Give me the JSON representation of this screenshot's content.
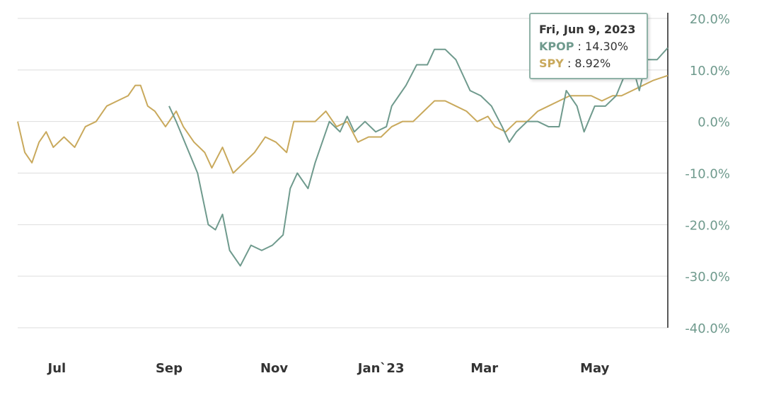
{
  "chart_data": {
    "type": "line",
    "x_unit": "days since Jun 9, 2022",
    "xlim": [
      0,
      365
    ],
    "ylim": [
      -40,
      20
    ],
    "yticks": [
      20,
      10,
      0,
      -10,
      -20,
      -30,
      -40
    ],
    "ytick_labels": [
      "20.0%",
      "10.0%",
      "0.0%",
      "-10.0%",
      "-20.0%",
      "-30.0%",
      "-40.0%"
    ],
    "xticks": [
      {
        "day": 22,
        "label": "Jul"
      },
      {
        "day": 85,
        "label": "Sep"
      },
      {
        "day": 144,
        "label": "Nov"
      },
      {
        "day": 204,
        "label": "Jan`23"
      },
      {
        "day": 262,
        "label": "Mar"
      },
      {
        "day": 324,
        "label": "May"
      }
    ],
    "grid": true,
    "series": [
      {
        "name": "SPY",
        "color": "#c9a95c",
        "points": [
          [
            0,
            0
          ],
          [
            4,
            -6
          ],
          [
            8,
            -8
          ],
          [
            12,
            -4
          ],
          [
            16,
            -2
          ],
          [
            20,
            -5
          ],
          [
            26,
            -3
          ],
          [
            32,
            -5
          ],
          [
            38,
            -1
          ],
          [
            44,
            0
          ],
          [
            50,
            3
          ],
          [
            56,
            4
          ],
          [
            62,
            5
          ],
          [
            66,
            7
          ],
          [
            69,
            7
          ],
          [
            73,
            3
          ],
          [
            77,
            2
          ],
          [
            83,
            -1
          ],
          [
            89,
            2
          ],
          [
            93,
            -1
          ],
          [
            99,
            -4
          ],
          [
            105,
            -6
          ],
          [
            109,
            -9
          ],
          [
            115,
            -5
          ],
          [
            121,
            -10
          ],
          [
            127,
            -8
          ],
          [
            133,
            -6
          ],
          [
            139,
            -3
          ],
          [
            145,
            -4
          ],
          [
            151,
            -6
          ],
          [
            155,
            0
          ],
          [
            161,
            0
          ],
          [
            167,
            0
          ],
          [
            173,
            2
          ],
          [
            179,
            -1
          ],
          [
            185,
            0
          ],
          [
            191,
            -4
          ],
          [
            197,
            -3
          ],
          [
            204,
            -3
          ],
          [
            210,
            -1
          ],
          [
            216,
            0
          ],
          [
            222,
            0
          ],
          [
            228,
            2
          ],
          [
            234,
            4
          ],
          [
            240,
            4
          ],
          [
            246,
            3
          ],
          [
            252,
            2
          ],
          [
            258,
            0
          ],
          [
            264,
            1
          ],
          [
            268,
            -1
          ],
          [
            274,
            -2
          ],
          [
            280,
            0
          ],
          [
            286,
            0
          ],
          [
            292,
            2
          ],
          [
            298,
            3
          ],
          [
            304,
            4
          ],
          [
            310,
            5
          ],
          [
            316,
            5
          ],
          [
            322,
            5
          ],
          [
            328,
            4
          ],
          [
            334,
            5
          ],
          [
            339,
            5
          ],
          [
            345,
            6
          ],
          [
            351,
            7
          ],
          [
            357,
            8
          ],
          [
            365,
            8.92
          ]
        ]
      },
      {
        "name": "KPOP",
        "color": "#6f9a8d",
        "points": [
          [
            85,
            3
          ],
          [
            89,
            0
          ],
          [
            95,
            -5
          ],
          [
            101,
            -10
          ],
          [
            107,
            -20
          ],
          [
            111,
            -21
          ],
          [
            115,
            -18
          ],
          [
            119,
            -25
          ],
          [
            125,
            -28
          ],
          [
            131,
            -24
          ],
          [
            137,
            -25
          ],
          [
            143,
            -24
          ],
          [
            149,
            -22
          ],
          [
            153,
            -13
          ],
          [
            157,
            -10
          ],
          [
            163,
            -13
          ],
          [
            167,
            -8
          ],
          [
            171,
            -4
          ],
          [
            175,
            0
          ],
          [
            181,
            -2
          ],
          [
            185,
            1
          ],
          [
            189,
            -2
          ],
          [
            195,
            0
          ],
          [
            201,
            -2
          ],
          [
            207,
            -1
          ],
          [
            210,
            3
          ],
          [
            214,
            5
          ],
          [
            218,
            7
          ],
          [
            224,
            11
          ],
          [
            230,
            11
          ],
          [
            234,
            14
          ],
          [
            240,
            14
          ],
          [
            246,
            12
          ],
          [
            250,
            9
          ],
          [
            254,
            6
          ],
          [
            260,
            5
          ],
          [
            266,
            3
          ],
          [
            272,
            -1
          ],
          [
            276,
            -4
          ],
          [
            280,
            -2
          ],
          [
            286,
            0
          ],
          [
            292,
            0
          ],
          [
            298,
            -1
          ],
          [
            304,
            -1
          ],
          [
            308,
            6
          ],
          [
            314,
            3
          ],
          [
            318,
            -2
          ],
          [
            324,
            3
          ],
          [
            330,
            3
          ],
          [
            336,
            5
          ],
          [
            342,
            10
          ],
          [
            345,
            11
          ],
          [
            349,
            6
          ],
          [
            353,
            12
          ],
          [
            359,
            12
          ],
          [
            365,
            14.3
          ]
        ]
      }
    ]
  },
  "tooltip": {
    "date": "Fri, Jun 9, 2023",
    "kpop_label": "KPOP",
    "kpop_value": ": 14.30%",
    "spy_label": "SPY",
    "spy_value": ": 8.92%"
  }
}
